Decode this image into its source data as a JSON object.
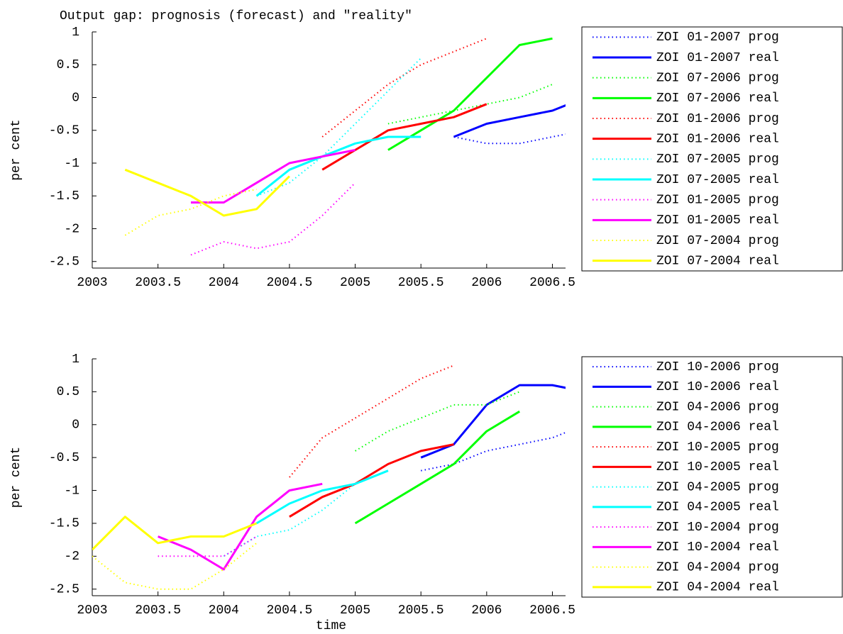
{
  "chart_data": [
    {
      "type": "line",
      "title": "Output gap: prognosis (forecast) and \"reality\"",
      "ylabel": "per cent",
      "xlim": [
        2003,
        2006.6
      ],
      "xticks": [
        2003,
        2003.5,
        2004,
        2004.5,
        2005,
        2005.5,
        2006,
        2006.5
      ],
      "ylim": [
        -2.6,
        1
      ],
      "yticks": [
        -2.5,
        -2,
        -1.5,
        -1,
        -0.5,
        0,
        0.5,
        1
      ],
      "series": [
        {
          "name": "ZOI 01-2007 prog",
          "color": "#0000ff",
          "linestyle": "dotted",
          "x": [
            2005.75,
            2006,
            2006.25,
            2006.5,
            2006.75
          ],
          "values": [
            -0.6,
            -0.7,
            -0.7,
            -0.6,
            -0.5
          ]
        },
        {
          "name": "ZOI 01-2007 real",
          "color": "#0000ff",
          "linestyle": "solid",
          "x": [
            2005.75,
            2006,
            2006.25,
            2006.5,
            2006.75
          ],
          "values": [
            -0.6,
            -0.4,
            -0.3,
            -0.2,
            0
          ]
        },
        {
          "name": "ZOI 07-2006 prog",
          "color": "#00ff00",
          "linestyle": "dotted",
          "x": [
            2005.25,
            2005.5,
            2005.75,
            2006,
            2006.25,
            2006.5
          ],
          "values": [
            -0.4,
            -0.3,
            -0.2,
            -0.1,
            0,
            0.2
          ]
        },
        {
          "name": "ZOI 07-2006 real",
          "color": "#00ff00",
          "linestyle": "solid",
          "x": [
            2005.25,
            2005.5,
            2005.75,
            2006,
            2006.25,
            2006.5
          ],
          "values": [
            -0.8,
            -0.5,
            -0.2,
            0.3,
            0.8,
            0.9
          ]
        },
        {
          "name": "ZOI 01-2006 prog",
          "color": "#ff0000",
          "linestyle": "dotted",
          "x": [
            2004.75,
            2005,
            2005.25,
            2005.5,
            2005.75,
            2006
          ],
          "values": [
            -0.6,
            -0.2,
            0.2,
            0.5,
            0.7,
            0.9
          ]
        },
        {
          "name": "ZOI 01-2006 real",
          "color": "#ff0000",
          "linestyle": "solid",
          "x": [
            2004.75,
            2005,
            2005.25,
            2005.5,
            2005.75,
            2006
          ],
          "values": [
            -1.1,
            -0.8,
            -0.5,
            -0.4,
            -0.3,
            -0.1
          ]
        },
        {
          "name": "ZOI 07-2005 prog",
          "color": "#00ffff",
          "linestyle": "dotted",
          "x": [
            2004.25,
            2004.5,
            2004.75,
            2005,
            2005.25,
            2005.5
          ],
          "values": [
            -1.5,
            -1.3,
            -0.9,
            -0.4,
            0.1,
            0.6
          ]
        },
        {
          "name": "ZOI 07-2005 real",
          "color": "#00ffff",
          "linestyle": "solid",
          "x": [
            2004.25,
            2004.5,
            2004.75,
            2005,
            2005.25,
            2005.5
          ],
          "values": [
            -1.5,
            -1.1,
            -0.9,
            -0.7,
            -0.6,
            -0.6
          ]
        },
        {
          "name": "ZOI 01-2005 prog",
          "color": "#ff00ff",
          "linestyle": "dotted",
          "x": [
            2003.75,
            2004,
            2004.25,
            2004.5,
            2004.75,
            2005
          ],
          "values": [
            -2.4,
            -2.2,
            -2.3,
            -2.2,
            -1.8,
            -1.3
          ]
        },
        {
          "name": "ZOI 01-2005 real",
          "color": "#ff00ff",
          "linestyle": "solid",
          "x": [
            2003.75,
            2004,
            2004.25,
            2004.5,
            2004.75,
            2005
          ],
          "values": [
            -1.6,
            -1.6,
            -1.3,
            -1.0,
            -0.9,
            -0.8
          ]
        },
        {
          "name": "ZOI 07-2004 prog",
          "color": "#ffff00",
          "linestyle": "dotted",
          "x": [
            2003.25,
            2003.5,
            2003.75,
            2004,
            2004.25
          ],
          "values": [
            -2.1,
            -1.8,
            -1.7,
            -1.5,
            -1.4
          ]
        },
        {
          "name": "ZOI 07-2004 real",
          "color": "#ffff00",
          "linestyle": "solid",
          "x": [
            2003.25,
            2003.5,
            2003.75,
            2004,
            2004.25,
            2004.5
          ],
          "values": [
            -1.1,
            -1.3,
            -1.5,
            -1.8,
            -1.7,
            -1.2
          ]
        }
      ]
    },
    {
      "type": "line",
      "ylabel": "per cent",
      "xlabel": "time",
      "xlim": [
        2003,
        2006.6
      ],
      "xticks": [
        2003,
        2003.5,
        2004,
        2004.5,
        2005,
        2005.5,
        2006,
        2006.5
      ],
      "ylim": [
        -2.6,
        1
      ],
      "yticks": [
        -2.5,
        -2,
        -1.5,
        -1,
        -0.5,
        0,
        0.5,
        1
      ],
      "series": [
        {
          "name": "ZOI 10-2006 prog",
          "color": "#0000ff",
          "linestyle": "dotted",
          "x": [
            2005.5,
            2005.75,
            2006,
            2006.25,
            2006.5,
            2006.75
          ],
          "values": [
            -0.7,
            -0.6,
            -0.4,
            -0.3,
            -0.2,
            0
          ]
        },
        {
          "name": "ZOI 10-2006 real",
          "color": "#0000ff",
          "linestyle": "solid",
          "x": [
            2005.5,
            2005.75,
            2006,
            2006.25,
            2006.5,
            2006.75
          ],
          "values": [
            -0.5,
            -0.3,
            0.3,
            0.6,
            0.6,
            0.5
          ]
        },
        {
          "name": "ZOI 04-2006 prog",
          "color": "#00ff00",
          "linestyle": "dotted",
          "x": [
            2005,
            2005.25,
            2005.5,
            2005.75,
            2006,
            2006.25
          ],
          "values": [
            -0.4,
            -0.1,
            0.1,
            0.3,
            0.3,
            0.5
          ]
        },
        {
          "name": "ZOI 04-2006 real",
          "color": "#00ff00",
          "linestyle": "solid",
          "x": [
            2005,
            2005.25,
            2005.5,
            2005.75,
            2006,
            2006.25
          ],
          "values": [
            -1.5,
            -1.2,
            -0.9,
            -0.6,
            -0.1,
            0.2
          ]
        },
        {
          "name": "ZOI 10-2005 prog",
          "color": "#ff0000",
          "linestyle": "dotted",
          "x": [
            2004.5,
            2004.75,
            2005,
            2005.25,
            2005.5,
            2005.75
          ],
          "values": [
            -0.8,
            -0.2,
            0.1,
            0.4,
            0.7,
            0.9
          ]
        },
        {
          "name": "ZOI 10-2005 real",
          "color": "#ff0000",
          "linestyle": "solid",
          "x": [
            2004.5,
            2004.75,
            2005,
            2005.25,
            2005.5,
            2005.75
          ],
          "values": [
            -1.4,
            -1.1,
            -0.9,
            -0.6,
            -0.4,
            -0.3
          ]
        },
        {
          "name": "ZOI 04-2005 prog",
          "color": "#00ffff",
          "linestyle": "dotted",
          "x": [
            2004,
            2004.25,
            2004.5,
            2004.75,
            2005,
            2005.25
          ],
          "values": [
            -2.0,
            -1.7,
            -1.6,
            -1.3,
            -0.9,
            -0.7
          ]
        },
        {
          "name": "ZOI 04-2005 real",
          "color": "#00ffff",
          "linestyle": "solid",
          "x": [
            2004.25,
            2004.5,
            2004.75,
            2005,
            2005.25
          ],
          "values": [
            -1.5,
            -1.2,
            -1.0,
            -0.9,
            -0.7
          ]
        },
        {
          "name": "ZOI 10-2004 prog",
          "color": "#ff00ff",
          "linestyle": "dotted",
          "x": [
            2003.5,
            2003.75,
            2004,
            2004.25
          ],
          "values": [
            -2.0,
            -2.0,
            -2.0,
            -1.7
          ]
        },
        {
          "name": "ZOI 10-2004 real",
          "color": "#ff00ff",
          "linestyle": "solid",
          "x": [
            2003.5,
            2003.75,
            2004,
            2004.25,
            2004.5,
            2004.75
          ],
          "values": [
            -1.7,
            -1.9,
            -2.2,
            -1.4,
            -1.0,
            -0.9
          ]
        },
        {
          "name": "ZOI 04-2004 prog",
          "color": "#ffff00",
          "linestyle": "dotted",
          "x": [
            2003,
            2003.25,
            2003.5,
            2003.75,
            2004,
            2004.25
          ],
          "values": [
            -2.0,
            -2.4,
            -2.5,
            -2.5,
            -2.2,
            -1.8
          ]
        },
        {
          "name": "ZOI 04-2004 real",
          "color": "#ffff00",
          "linestyle": "solid",
          "x": [
            2003,
            2003.25,
            2003.5,
            2003.75,
            2004,
            2004.25
          ],
          "values": [
            -1.9,
            -1.4,
            -1.8,
            -1.7,
            -1.7,
            -1.5
          ]
        }
      ]
    }
  ]
}
